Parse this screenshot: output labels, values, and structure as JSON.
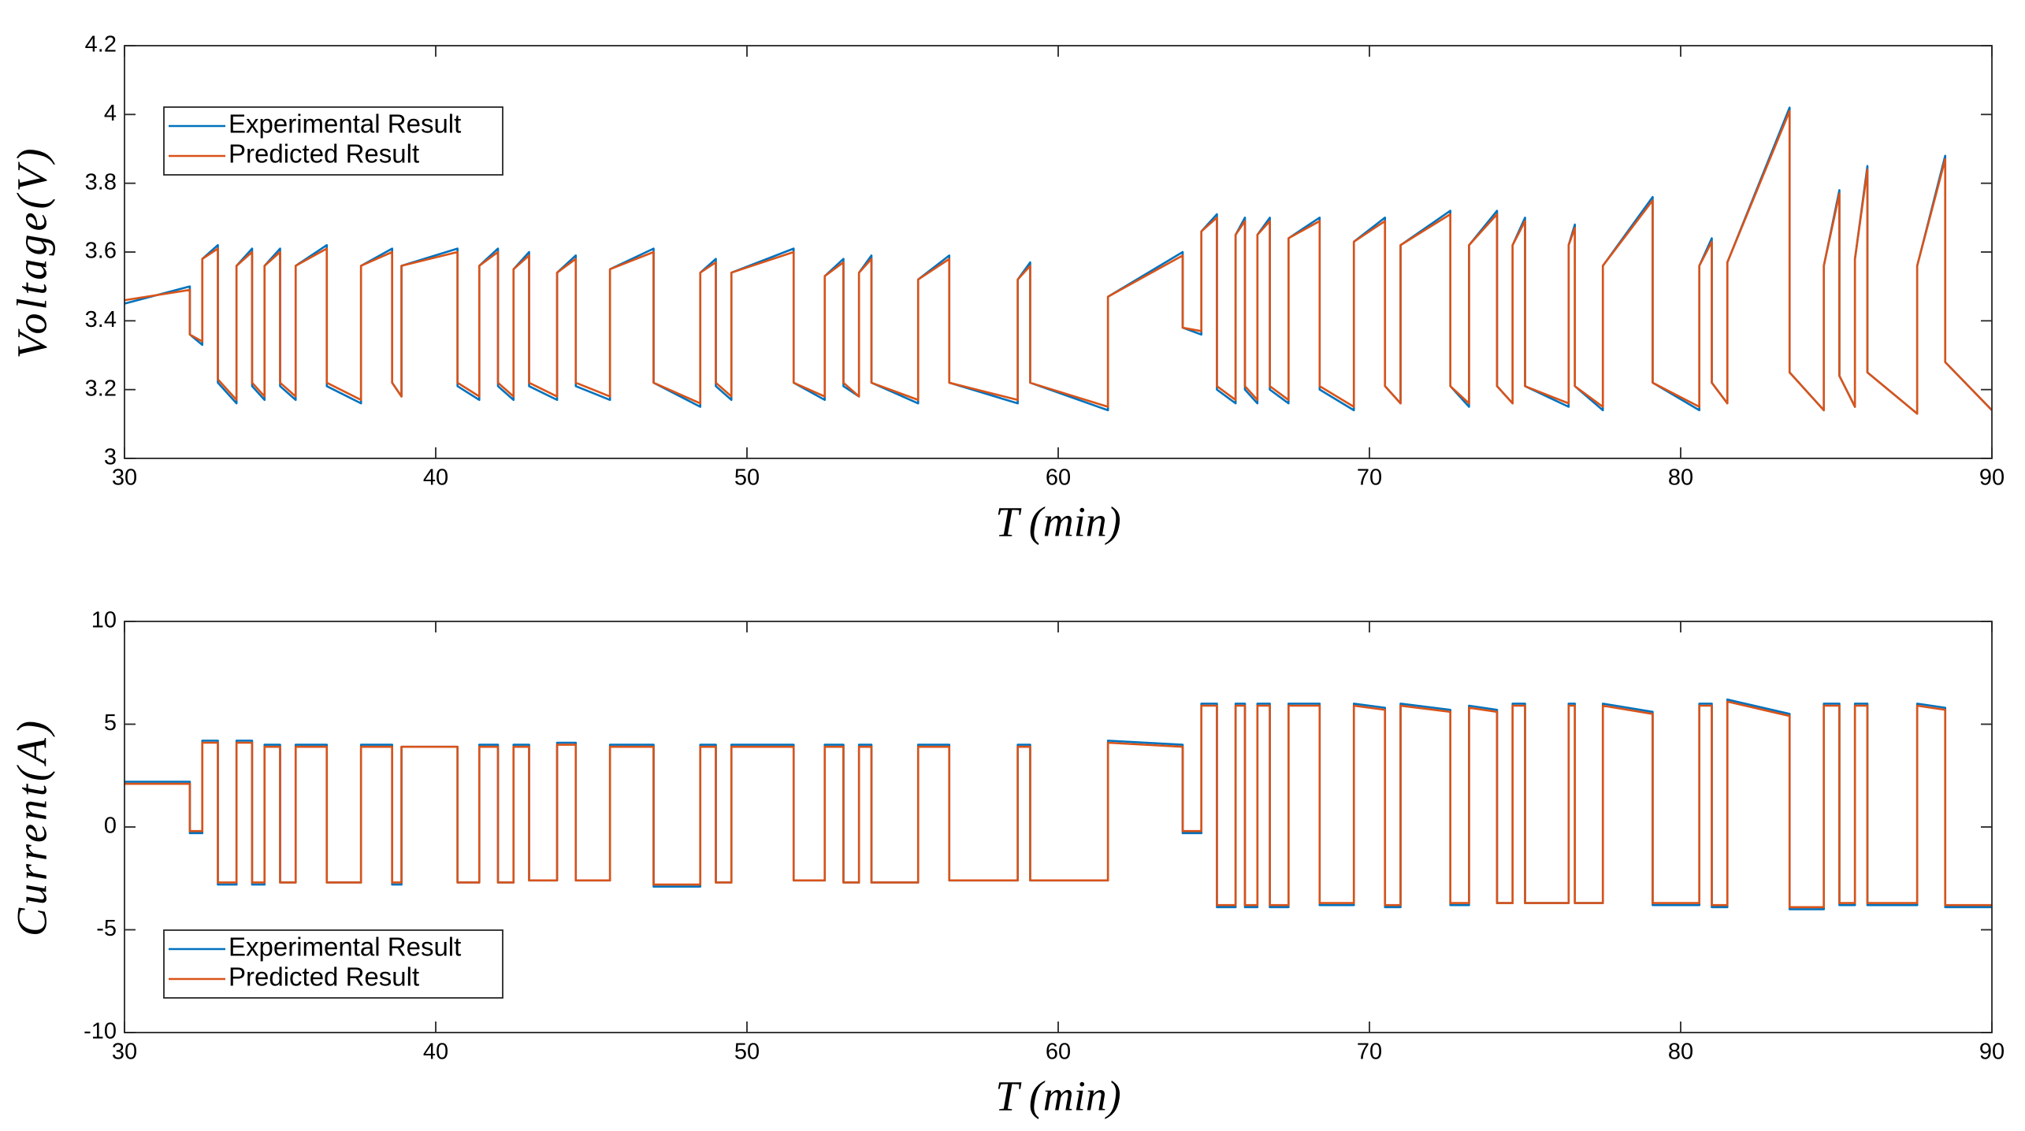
{
  "chart_data": [
    {
      "type": "line",
      "xlabel": "T (min)",
      "ylabel": "Voltage(V)",
      "xlim": [
        30,
        90
      ],
      "xticks": [
        30,
        40,
        50,
        60,
        70,
        80,
        90
      ],
      "ylim": [
        3,
        4.2
      ],
      "yticks": [
        3,
        3.2,
        3.4,
        3.6,
        3.8,
        4,
        4.2
      ],
      "legend": "upper left",
      "x": [
        30,
        32.1,
        32.1,
        32.5,
        32.5,
        33.0,
        33.0,
        33.6,
        33.6,
        34.1,
        34.1,
        34.5,
        34.5,
        35.0,
        35.0,
        35.5,
        35.5,
        36.5,
        36.5,
        37.6,
        37.6,
        38.6,
        38.6,
        38.9,
        38.9,
        40.7,
        40.7,
        41.4,
        41.4,
        42.0,
        42.0,
        42.5,
        42.5,
        43.0,
        43.0,
        43.9,
        43.9,
        44.5,
        44.5,
        45.6,
        45.6,
        47.0,
        47.0,
        48.5,
        48.5,
        49.0,
        49.0,
        49.5,
        49.5,
        51.5,
        51.5,
        52.5,
        52.5,
        53.1,
        53.1,
        53.6,
        53.6,
        54.0,
        54.0,
        55.5,
        55.5,
        56.5,
        56.5,
        58.7,
        58.7,
        59.1,
        59.1,
        61.6,
        61.6,
        64.0,
        64.0,
        64.6,
        64.6,
        65.1,
        65.1,
        65.7,
        65.7,
        66.0,
        66.0,
        66.4,
        66.4,
        66.8,
        66.8,
        67.4,
        67.4,
        68.4,
        68.4,
        69.5,
        69.5,
        70.5,
        70.5,
        71.0,
        71.0,
        72.6,
        72.6,
        73.2,
        73.2,
        74.1,
        74.1,
        74.6,
        74.6,
        75.0,
        75.0,
        76.4,
        76.4,
        76.6,
        76.6,
        77.5,
        77.5,
        79.1,
        79.1,
        80.6,
        80.6,
        81.0,
        81.0,
        81.5,
        81.5,
        83.5,
        83.5,
        84.6,
        84.6,
        85.1,
        85.1,
        85.6,
        85.6,
        86.0,
        86.0,
        87.6,
        87.6,
        88.5,
        88.5,
        90
      ],
      "series": [
        {
          "name": "Experimental Result",
          "color": "#0072BD",
          "values": [
            3.45,
            3.5,
            3.36,
            3.33,
            3.58,
            3.62,
            3.22,
            3.16,
            3.56,
            3.61,
            3.21,
            3.17,
            3.56,
            3.61,
            3.21,
            3.17,
            3.56,
            3.62,
            3.21,
            3.16,
            3.56,
            3.61,
            3.22,
            3.18,
            3.56,
            3.61,
            3.21,
            3.17,
            3.56,
            3.61,
            3.21,
            3.17,
            3.55,
            3.6,
            3.21,
            3.17,
            3.54,
            3.59,
            3.21,
            3.17,
            3.55,
            3.61,
            3.22,
            3.15,
            3.54,
            3.58,
            3.21,
            3.17,
            3.54,
            3.61,
            3.22,
            3.17,
            3.53,
            3.58,
            3.21,
            3.18,
            3.54,
            3.59,
            3.22,
            3.16,
            3.52,
            3.59,
            3.22,
            3.16,
            3.52,
            3.57,
            3.22,
            3.14,
            3.47,
            3.6,
            3.38,
            3.36,
            3.66,
            3.71,
            3.2,
            3.16,
            3.65,
            3.7,
            3.2,
            3.16,
            3.65,
            3.7,
            3.2,
            3.16,
            3.64,
            3.7,
            3.2,
            3.14,
            3.63,
            3.7,
            3.21,
            3.16,
            3.62,
            3.72,
            3.21,
            3.15,
            3.62,
            3.72,
            3.21,
            3.16,
            3.62,
            3.7,
            3.21,
            3.15,
            3.62,
            3.68,
            3.21,
            3.14,
            3.56,
            3.76,
            3.22,
            3.14,
            3.56,
            3.64,
            3.22,
            3.16,
            3.57,
            4.02,
            3.25,
            3.14,
            3.56,
            3.78,
            3.24,
            3.15,
            3.58,
            3.85,
            3.25,
            3.13,
            3.56,
            3.88,
            3.28,
            3.14
          ]
        },
        {
          "name": "Predicted Result",
          "color": "#D95319",
          "values": [
            3.46,
            3.49,
            3.36,
            3.34,
            3.58,
            3.61,
            3.23,
            3.17,
            3.56,
            3.6,
            3.22,
            3.18,
            3.56,
            3.6,
            3.22,
            3.18,
            3.56,
            3.61,
            3.22,
            3.17,
            3.56,
            3.6,
            3.22,
            3.18,
            3.56,
            3.6,
            3.22,
            3.18,
            3.56,
            3.6,
            3.22,
            3.18,
            3.55,
            3.59,
            3.22,
            3.18,
            3.54,
            3.58,
            3.22,
            3.18,
            3.55,
            3.6,
            3.22,
            3.16,
            3.54,
            3.57,
            3.22,
            3.18,
            3.54,
            3.6,
            3.22,
            3.18,
            3.53,
            3.57,
            3.22,
            3.18,
            3.54,
            3.58,
            3.22,
            3.17,
            3.52,
            3.58,
            3.22,
            3.17,
            3.52,
            3.56,
            3.22,
            3.15,
            3.47,
            3.59,
            3.38,
            3.37,
            3.66,
            3.7,
            3.21,
            3.17,
            3.65,
            3.69,
            3.21,
            3.17,
            3.65,
            3.69,
            3.21,
            3.17,
            3.64,
            3.69,
            3.21,
            3.15,
            3.63,
            3.69,
            3.21,
            3.16,
            3.62,
            3.71,
            3.21,
            3.16,
            3.62,
            3.71,
            3.21,
            3.16,
            3.62,
            3.69,
            3.21,
            3.16,
            3.62,
            3.67,
            3.21,
            3.15,
            3.56,
            3.75,
            3.22,
            3.15,
            3.56,
            3.63,
            3.22,
            3.16,
            3.57,
            4.01,
            3.25,
            3.14,
            3.56,
            3.77,
            3.24,
            3.15,
            3.58,
            3.84,
            3.25,
            3.13,
            3.56,
            3.87,
            3.28,
            3.14
          ]
        }
      ]
    },
    {
      "type": "line",
      "xlabel": "T (min)",
      "ylabel": "Current(A)",
      "xlim": [
        30,
        90
      ],
      "xticks": [
        30,
        40,
        50,
        60,
        70,
        80,
        90
      ],
      "ylim": [
        -10,
        10
      ],
      "yticks": [
        -10,
        -5,
        0,
        5,
        10
      ],
      "legend": "lower left",
      "x": [
        30,
        32.1,
        32.1,
        32.5,
        32.5,
        33.0,
        33.0,
        33.6,
        33.6,
        34.1,
        34.1,
        34.5,
        34.5,
        35.0,
        35.0,
        35.5,
        35.5,
        36.5,
        36.5,
        37.6,
        37.6,
        38.6,
        38.6,
        38.9,
        38.9,
        40.7,
        40.7,
        41.4,
        41.4,
        42.0,
        42.0,
        42.5,
        42.5,
        43.0,
        43.0,
        43.9,
        43.9,
        44.5,
        44.5,
        45.6,
        45.6,
        47.0,
        47.0,
        48.5,
        48.5,
        49.0,
        49.0,
        49.5,
        49.5,
        51.5,
        51.5,
        52.5,
        52.5,
        53.1,
        53.1,
        53.6,
        53.6,
        54.0,
        54.0,
        55.5,
        55.5,
        56.5,
        56.5,
        58.7,
        58.7,
        59.1,
        59.1,
        61.6,
        61.6,
        64.0,
        64.0,
        64.6,
        64.6,
        65.1,
        65.1,
        65.7,
        65.7,
        66.0,
        66.0,
        66.4,
        66.4,
        66.8,
        66.8,
        67.4,
        67.4,
        68.4,
        68.4,
        69.5,
        69.5,
        70.5,
        70.5,
        71.0,
        71.0,
        72.6,
        72.6,
        73.2,
        73.2,
        74.1,
        74.1,
        74.6,
        74.6,
        75.0,
        75.0,
        76.4,
        76.4,
        76.6,
        76.6,
        77.5,
        77.5,
        79.1,
        79.1,
        80.6,
        80.6,
        81.0,
        81.0,
        81.5,
        81.5,
        83.5,
        83.5,
        84.6,
        84.6,
        85.1,
        85.1,
        85.6,
        85.6,
        86.0,
        86.0,
        87.6,
        87.6,
        88.5,
        88.5,
        90
      ],
      "series": [
        {
          "name": "Experimental Result",
          "color": "#0072BD",
          "values": [
            2.2,
            2.2,
            -0.3,
            -0.3,
            4.2,
            4.2,
            -2.8,
            -2.8,
            4.2,
            4.2,
            -2.8,
            -2.8,
            4.0,
            4.0,
            -2.7,
            -2.7,
            4.0,
            4.0,
            -2.7,
            -2.7,
            4.0,
            4.0,
            -2.8,
            -2.8,
            3.9,
            3.9,
            -2.7,
            -2.7,
            4.0,
            4.0,
            -2.7,
            -2.7,
            4.0,
            4.0,
            -2.6,
            -2.6,
            4.1,
            4.1,
            -2.6,
            -2.6,
            4.0,
            4.0,
            -2.9,
            -2.9,
            4.0,
            4.0,
            -2.7,
            -2.7,
            4.0,
            4.0,
            -2.6,
            -2.6,
            4.0,
            4.0,
            -2.7,
            -2.7,
            4.0,
            4.0,
            -2.7,
            -2.7,
            4.0,
            4.0,
            -2.6,
            -2.6,
            4.0,
            4.0,
            -2.6,
            -2.6,
            4.2,
            4.0,
            -0.3,
            -0.3,
            6.0,
            6.0,
            -3.9,
            -3.9,
            6.0,
            6.0,
            -3.9,
            -3.9,
            6.0,
            6.0,
            -3.9,
            -3.9,
            6.0,
            6.0,
            -3.8,
            -3.8,
            6.0,
            5.8,
            -3.9,
            -3.9,
            6.0,
            5.7,
            -3.8,
            -3.8,
            5.9,
            5.7,
            -3.7,
            -3.7,
            6.0,
            6.0,
            -3.7,
            -3.7,
            6.0,
            6.0,
            -3.7,
            -3.7,
            6.0,
            5.6,
            -3.8,
            -3.8,
            6.0,
            6.0,
            -3.9,
            -3.9,
            6.2,
            5.5,
            -4.0,
            -4.0,
            6.0,
            6.0,
            -3.8,
            -3.8,
            6.0,
            6.0,
            -3.8,
            -3.8,
            6.0,
            5.8,
            -3.9,
            -3.9
          ]
        },
        {
          "name": "Predicted Result",
          "color": "#D95319",
          "values": [
            2.1,
            2.1,
            -0.2,
            -0.2,
            4.1,
            4.1,
            -2.7,
            -2.7,
            4.1,
            4.1,
            -2.7,
            -2.7,
            3.9,
            3.9,
            -2.7,
            -2.7,
            3.9,
            3.9,
            -2.7,
            -2.7,
            3.9,
            3.9,
            -2.7,
            -2.7,
            3.9,
            3.9,
            -2.7,
            -2.7,
            3.9,
            3.9,
            -2.7,
            -2.7,
            3.9,
            3.9,
            -2.6,
            -2.6,
            4.0,
            4.0,
            -2.6,
            -2.6,
            3.9,
            3.9,
            -2.8,
            -2.8,
            3.9,
            3.9,
            -2.7,
            -2.7,
            3.9,
            3.9,
            -2.6,
            -2.6,
            3.9,
            3.9,
            -2.7,
            -2.7,
            3.9,
            3.9,
            -2.7,
            -2.7,
            3.9,
            3.9,
            -2.6,
            -2.6,
            3.9,
            3.9,
            -2.6,
            -2.6,
            4.1,
            3.9,
            -0.2,
            -0.2,
            5.9,
            5.9,
            -3.8,
            -3.8,
            5.9,
            5.9,
            -3.8,
            -3.8,
            5.9,
            5.9,
            -3.8,
            -3.8,
            5.9,
            5.9,
            -3.7,
            -3.7,
            5.9,
            5.7,
            -3.8,
            -3.8,
            5.9,
            5.6,
            -3.7,
            -3.7,
            5.8,
            5.6,
            -3.7,
            -3.7,
            5.9,
            5.9,
            -3.7,
            -3.7,
            5.9,
            5.9,
            -3.7,
            -3.7,
            5.9,
            5.5,
            -3.7,
            -3.7,
            5.9,
            5.9,
            -3.8,
            -3.8,
            6.1,
            5.4,
            -3.9,
            -3.9,
            5.9,
            5.9,
            -3.7,
            -3.7,
            5.9,
            5.9,
            -3.7,
            -3.7,
            5.9,
            5.7,
            -3.8,
            -3.8
          ]
        }
      ]
    }
  ]
}
